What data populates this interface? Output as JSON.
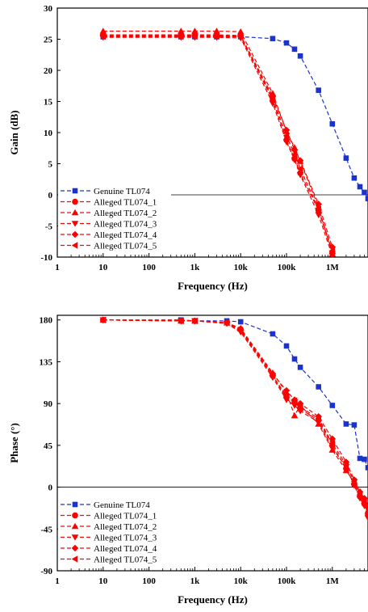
{
  "chart_data": [
    {
      "type": "line",
      "xlabel": "Frequency (Hz)",
      "ylabel": "Gain (dB)",
      "x_scale": "log",
      "xlim": [
        1,
        6000000
      ],
      "ylim": [
        -10,
        30
      ],
      "x_ticks": [
        "1",
        "10",
        "100",
        "1k",
        "10k",
        "100k",
        "1M"
      ],
      "y_ticks": [
        "-10",
        "-5",
        "0",
        "5",
        "10",
        "15",
        "20",
        "25",
        "30"
      ],
      "legend": "bottom-left",
      "series": [
        {
          "name": "Genuine TL074",
          "color": "#1a33cc",
          "marker": "square",
          "x": [
            10,
            500,
            1000,
            3000,
            10000,
            50000,
            100000,
            150000,
            200000,
            500000,
            1000000,
            2000000,
            3000000,
            4000000,
            5000000,
            6000000
          ],
          "y": [
            25.4,
            25.4,
            25.4,
            25.4,
            25.4,
            25.1,
            24.4,
            23.4,
            22.3,
            16.8,
            11.4,
            5.9,
            2.7,
            1.3,
            0.4,
            -0.6
          ]
        },
        {
          "name": "Alleged TL074_1",
          "color": "#ff0000",
          "marker": "circle",
          "x": [
            10,
            500,
            1000,
            3000,
            10000,
            50000,
            100000,
            150000,
            200000,
            500000,
            1000000
          ],
          "y": [
            25.6,
            25.6,
            25.6,
            25.6,
            25.5,
            15.2,
            8.8,
            5.8,
            3.5,
            -2.5,
            -9.2
          ]
        },
        {
          "name": "Alleged TL074_2",
          "color": "#ff0000",
          "marker": "triangle-up",
          "x": [
            10,
            500,
            1000,
            3000,
            10000,
            50000,
            100000,
            150000,
            200000,
            500000,
            1000000
          ],
          "y": [
            26.3,
            26.3,
            26.3,
            26.3,
            26.2,
            16.3,
            10.2,
            7.6,
            5.4,
            -2.0,
            -9.5
          ]
        },
        {
          "name": "Alleged TL074_3",
          "color": "#ff0000",
          "marker": "triangle-down",
          "x": [
            10,
            500,
            1000,
            3000,
            10000,
            50000,
            100000,
            150000,
            200000,
            500000,
            1000000
          ],
          "y": [
            25.3,
            25.3,
            25.3,
            25.3,
            25.2,
            14.7,
            8.5,
            5.6,
            3.2,
            -3.2,
            -9.8
          ]
        },
        {
          "name": "Alleged TL074_4",
          "color": "#ff0000",
          "marker": "diamond",
          "x": [
            10,
            500,
            1000,
            3000,
            10000,
            50000,
            100000,
            150000,
            200000,
            500000,
            1000000
          ],
          "y": [
            25.7,
            25.7,
            25.7,
            25.7,
            25.6,
            15.8,
            10.4,
            7.2,
            5.5,
            -1.5,
            -8.4
          ]
        },
        {
          "name": "Alleged TL074_5",
          "color": "#ff0000",
          "marker": "triangle-left",
          "x": [
            10,
            500,
            1000,
            3000,
            10000,
            50000,
            100000,
            150000,
            200000,
            500000,
            1000000
          ],
          "y": [
            25.5,
            25.5,
            25.5,
            25.5,
            25.4,
            15.5,
            9.5,
            6.5,
            4.2,
            -2.3,
            -9.0
          ]
        }
      ]
    },
    {
      "type": "line",
      "xlabel": "Frequency (Hz)",
      "ylabel": "Phase (°)",
      "x_scale": "log",
      "xlim": [
        1,
        6000000
      ],
      "ylim": [
        -90,
        185
      ],
      "x_ticks": [
        "1",
        "10",
        "100",
        "1k",
        "10k",
        "100k",
        "1M"
      ],
      "y_ticks": [
        "-90",
        "-45",
        "0",
        "45",
        "90",
        "135",
        "180"
      ],
      "legend": "bottom-left",
      "series": [
        {
          "name": "Genuine TL074",
          "color": "#1a33cc",
          "marker": "square",
          "x": [
            10,
            500,
            1000,
            5000,
            10000,
            50000,
            100000,
            150000,
            200000,
            500000,
            1000000,
            2000000,
            3000000,
            4000000,
            5000000,
            6000000
          ],
          "y": [
            180,
            180,
            179,
            179,
            178,
            165,
            152,
            138,
            129,
            108,
            88,
            68,
            67,
            31,
            30,
            21
          ]
        },
        {
          "name": "Alleged TL074_1",
          "color": "#ff0000",
          "marker": "circle",
          "x": [
            10,
            500,
            1000,
            5000,
            10000,
            50000,
            100000,
            150000,
            200000,
            500000,
            1000000,
            2000000,
            3000000,
            4000000,
            5000000,
            6000000
          ],
          "y": [
            180,
            179,
            179,
            177,
            170,
            120,
            98,
            92,
            84,
            72,
            45,
            20,
            3,
            -10,
            -18,
            -28
          ]
        },
        {
          "name": "Alleged TL074_2",
          "color": "#ff0000",
          "marker": "triangle-up",
          "x": [
            10,
            500,
            1000,
            5000,
            10000,
            50000,
            100000,
            150000,
            200000,
            500000,
            1000000,
            2000000,
            3000000,
            4000000,
            5000000,
            6000000
          ],
          "y": [
            180,
            179,
            179,
            177,
            171,
            123,
            102,
            77,
            88,
            68,
            40,
            18,
            5,
            -7,
            -15,
            -26
          ]
        },
        {
          "name": "Alleged TL074_3",
          "color": "#ff0000",
          "marker": "triangle-down",
          "x": [
            10,
            500,
            1000,
            5000,
            10000,
            50000,
            100000,
            150000,
            200000,
            500000,
            1000000,
            2000000,
            3000000,
            4000000,
            5000000,
            6000000
          ],
          "y": [
            180,
            179,
            179,
            176,
            167,
            118,
            94,
            88,
            82,
            70,
            42,
            22,
            2,
            -12,
            -20,
            -33
          ]
        },
        {
          "name": "Alleged TL074_4",
          "color": "#ff0000",
          "marker": "diamond",
          "x": [
            10,
            500,
            1000,
            5000,
            10000,
            50000,
            100000,
            150000,
            200000,
            500000,
            1000000,
            2000000,
            3000000,
            4000000,
            5000000,
            6000000
          ],
          "y": [
            180,
            179,
            179,
            177,
            169,
            122,
            104,
            94,
            90,
            76,
            52,
            27,
            8,
            -5,
            -12,
            -22
          ]
        },
        {
          "name": "Alleged TL074_5",
          "color": "#ff0000",
          "marker": "triangle-left",
          "x": [
            10,
            500,
            1000,
            5000,
            10000,
            50000,
            100000,
            150000,
            200000,
            500000,
            1000000,
            2000000,
            3000000,
            4000000,
            5000000,
            6000000
          ],
          "y": [
            180,
            179,
            179,
            177,
            168,
            120,
            96,
            93,
            86,
            74,
            47,
            24,
            6,
            -8,
            -16,
            -30
          ]
        }
      ]
    }
  ]
}
